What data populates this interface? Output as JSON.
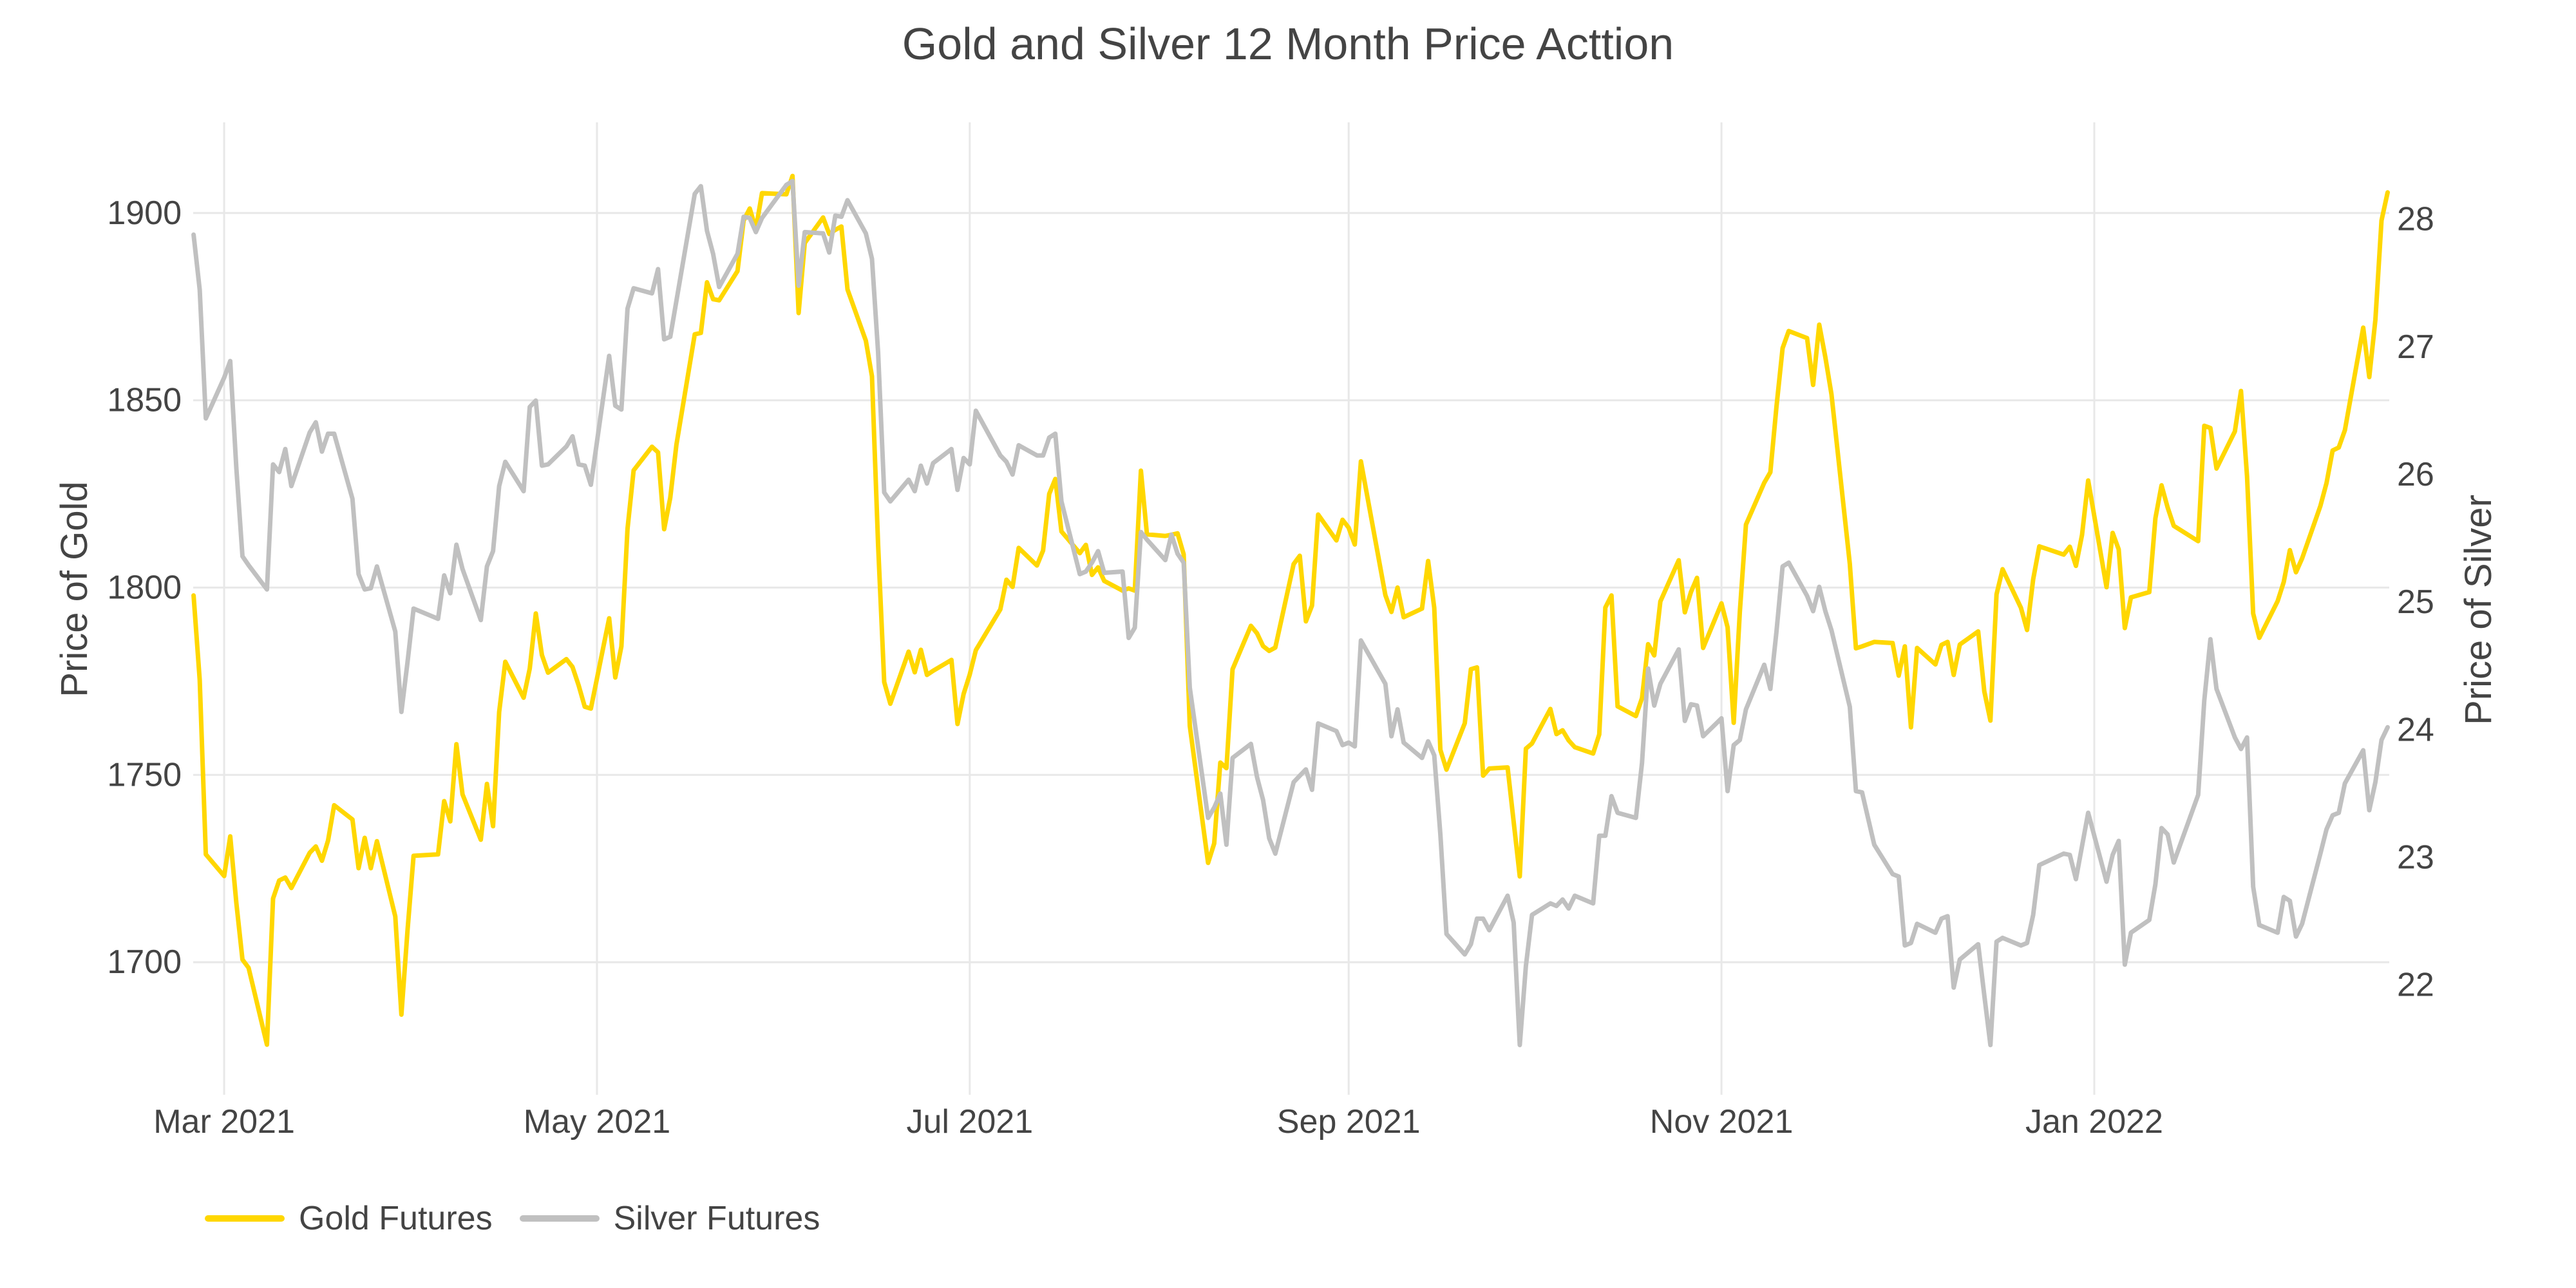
{
  "chart_data": {
    "type": "line",
    "title": "Gold and Silver 12 Month Price Acttion",
    "grid": true,
    "legend_position": "bottom-left",
    "colors": {
      "background": "#FFFFFF",
      "grid": "#E8E8E8",
      "text": "#444444"
    },
    "left_axis": {
      "label": "Price of Gold",
      "ticks": [
        1700,
        1750,
        1800,
        1850,
        1900
      ],
      "range": [
        1664.6,
        1924.2
      ]
    },
    "right_axis": {
      "label": "Price of Silver",
      "ticks": [
        22,
        23,
        24,
        25,
        26,
        27,
        28
      ],
      "range": [
        21.14,
        28.76
      ]
    },
    "x_axis": {
      "ticks": [
        {
          "label": "Mar 2021",
          "date": "2021-03-01"
        },
        {
          "label": "May 2021",
          "date": "2021-05-01"
        },
        {
          "label": "Jul 2021",
          "date": "2021-07-01"
        },
        {
          "label": "Sep 2021",
          "date": "2021-09-01"
        },
        {
          "label": "Nov 2021",
          "date": "2021-11-01"
        },
        {
          "label": "Jan 2022",
          "date": "2022-01-01"
        }
      ]
    },
    "dates": [
      "2021-02-24",
      "2021-02-25",
      "2021-02-26",
      "2021-03-01",
      "2021-03-02",
      "2021-03-03",
      "2021-03-04",
      "2021-03-05",
      "2021-03-08",
      "2021-03-09",
      "2021-03-10",
      "2021-03-11",
      "2021-03-12",
      "2021-03-15",
      "2021-03-16",
      "2021-03-17",
      "2021-03-18",
      "2021-03-19",
      "2021-03-22",
      "2021-03-23",
      "2021-03-24",
      "2021-03-25",
      "2021-03-26",
      "2021-03-29",
      "2021-03-30",
      "2021-03-31",
      "2021-04-01",
      "2021-04-05",
      "2021-04-06",
      "2021-04-07",
      "2021-04-08",
      "2021-04-09",
      "2021-04-12",
      "2021-04-13",
      "2021-04-14",
      "2021-04-15",
      "2021-04-16",
      "2021-04-19",
      "2021-04-20",
      "2021-04-21",
      "2021-04-22",
      "2021-04-23",
      "2021-04-26",
      "2021-04-27",
      "2021-04-28",
      "2021-04-29",
      "2021-04-30",
      "2021-05-03",
      "2021-05-04",
      "2021-05-05",
      "2021-05-06",
      "2021-05-07",
      "2021-05-10",
      "2021-05-11",
      "2021-05-12",
      "2021-05-13",
      "2021-05-14",
      "2021-05-17",
      "2021-05-18",
      "2021-05-19",
      "2021-05-20",
      "2021-05-21",
      "2021-05-24",
      "2021-05-25",
      "2021-05-26",
      "2021-05-27",
      "2021-05-28",
      "2021-06-01",
      "2021-06-02",
      "2021-06-03",
      "2021-06-04",
      "2021-06-07",
      "2021-06-08",
      "2021-06-09",
      "2021-06-10",
      "2021-06-11",
      "2021-06-14",
      "2021-06-15",
      "2021-06-16",
      "2021-06-17",
      "2021-06-18",
      "2021-06-21",
      "2021-06-22",
      "2021-06-23",
      "2021-06-24",
      "2021-06-25",
      "2021-06-28",
      "2021-06-29",
      "2021-06-30",
      "2021-07-01",
      "2021-07-02",
      "2021-07-06",
      "2021-07-07",
      "2021-07-08",
      "2021-07-09",
      "2021-07-12",
      "2021-07-13",
      "2021-07-14",
      "2021-07-15",
      "2021-07-16",
      "2021-07-19",
      "2021-07-20",
      "2021-07-21",
      "2021-07-22",
      "2021-07-23",
      "2021-07-26",
      "2021-07-27",
      "2021-07-28",
      "2021-07-29",
      "2021-07-30",
      "2021-08-02",
      "2021-08-03",
      "2021-08-04",
      "2021-08-05",
      "2021-08-06",
      "2021-08-09",
      "2021-08-10",
      "2021-08-11",
      "2021-08-12",
      "2021-08-13",
      "2021-08-16",
      "2021-08-17",
      "2021-08-18",
      "2021-08-19",
      "2021-08-20",
      "2021-08-23",
      "2021-08-24",
      "2021-08-25",
      "2021-08-26",
      "2021-08-27",
      "2021-08-30",
      "2021-08-31",
      "2021-09-01",
      "2021-09-02",
      "2021-09-03",
      "2021-09-07",
      "2021-09-08",
      "2021-09-09",
      "2021-09-10",
      "2021-09-13",
      "2021-09-14",
      "2021-09-15",
      "2021-09-16",
      "2021-09-17",
      "2021-09-20",
      "2021-09-21",
      "2021-09-22",
      "2021-09-23",
      "2021-09-24",
      "2021-09-27",
      "2021-09-28",
      "2021-09-29",
      "2021-09-30",
      "2021-10-01",
      "2021-10-04",
      "2021-10-05",
      "2021-10-06",
      "2021-10-07",
      "2021-10-08",
      "2021-10-11",
      "2021-10-12",
      "2021-10-13",
      "2021-10-14",
      "2021-10-15",
      "2021-10-18",
      "2021-10-19",
      "2021-10-20",
      "2021-10-21",
      "2021-10-22",
      "2021-10-25",
      "2021-10-26",
      "2021-10-27",
      "2021-10-28",
      "2021-10-29",
      "2021-11-01",
      "2021-11-02",
      "2021-11-03",
      "2021-11-04",
      "2021-11-05",
      "2021-11-08",
      "2021-11-09",
      "2021-11-10",
      "2021-11-11",
      "2021-11-12",
      "2021-11-15",
      "2021-11-16",
      "2021-11-17",
      "2021-11-18",
      "2021-11-19",
      "2021-11-22",
      "2021-11-23",
      "2021-11-24",
      "2021-11-26",
      "2021-11-29",
      "2021-11-30",
      "2021-12-01",
      "2021-12-02",
      "2021-12-03",
      "2021-12-06",
      "2021-12-07",
      "2021-12-08",
      "2021-12-09",
      "2021-12-10",
      "2021-12-13",
      "2021-12-14",
      "2021-12-15",
      "2021-12-16",
      "2021-12-17",
      "2021-12-20",
      "2021-12-21",
      "2021-12-22",
      "2021-12-23",
      "2021-12-27",
      "2021-12-28",
      "2021-12-29",
      "2021-12-30",
      "2021-12-31",
      "2022-01-03",
      "2022-01-04",
      "2022-01-05",
      "2022-01-06",
      "2022-01-07",
      "2022-01-10",
      "2022-01-11",
      "2022-01-12",
      "2022-01-13",
      "2022-01-14",
      "2022-01-18",
      "2022-01-19",
      "2022-01-20",
      "2022-01-21",
      "2022-01-24",
      "2022-01-25",
      "2022-01-26",
      "2022-01-27",
      "2022-01-28",
      "2022-01-31",
      "2022-02-01",
      "2022-02-02",
      "2022-02-03",
      "2022-02-04",
      "2022-02-07",
      "2022-02-08",
      "2022-02-09",
      "2022-02-10",
      "2022-02-11",
      "2022-02-14",
      "2022-02-15",
      "2022-02-16",
      "2022-02-17",
      "2022-02-18"
    ],
    "series": [
      {
        "name": "Gold Futures",
        "axis": "left",
        "color": "#FFD700",
        "values": [
          1797.9,
          1775.4,
          1728.8,
          1723.0,
          1733.6,
          1715.8,
          1700.7,
          1698.5,
          1678.0,
          1717.0,
          1721.8,
          1722.6,
          1719.8,
          1729.2,
          1730.9,
          1727.1,
          1732.5,
          1741.9,
          1738.1,
          1725.1,
          1733.2,
          1725.1,
          1732.3,
          1712.2,
          1686.0,
          1708.5,
          1728.4,
          1728.8,
          1743.0,
          1737.6,
          1758.2,
          1744.8,
          1732.7,
          1747.6,
          1736.3,
          1766.8,
          1780.2,
          1770.6,
          1778.4,
          1793.1,
          1782.0,
          1777.3,
          1780.9,
          1778.8,
          1773.9,
          1768.2,
          1767.7,
          1791.8,
          1776.0,
          1784.3,
          1815.7,
          1831.3,
          1837.6,
          1836.1,
          1815.6,
          1824.0,
          1838.1,
          1867.6,
          1868.0,
          1881.5,
          1877.0,
          1876.7,
          1884.5,
          1898.0,
          1901.2,
          1895.7,
          1905.3,
          1905.0,
          1909.9,
          1873.3,
          1892.0,
          1898.8,
          1894.4,
          1895.5,
          1896.4,
          1879.6,
          1865.9,
          1856.4,
          1811.5,
          1774.8,
          1769.0,
          1782.9,
          1777.4,
          1783.4,
          1776.7,
          1777.8,
          1780.7,
          1763.6,
          1771.6,
          1776.8,
          1783.3,
          1794.2,
          1802.1,
          1800.2,
          1810.6,
          1805.9,
          1809.9,
          1825.0,
          1829.0,
          1815.0,
          1809.2,
          1811.4,
          1803.4,
          1805.4,
          1801.8,
          1799.2,
          1799.8,
          1799.2,
          1831.2,
          1814.2,
          1813.8,
          1814.1,
          1814.5,
          1808.9,
          1763.1,
          1726.5,
          1731.7,
          1753.3,
          1751.8,
          1778.2,
          1789.8,
          1787.8,
          1784.4,
          1783.1,
          1784.0,
          1806.3,
          1808.5,
          1791.0,
          1795.2,
          1819.5,
          1812.6,
          1818.1,
          1816.0,
          1811.5,
          1833.7,
          1798.0,
          1793.5,
          1800.0,
          1792.1,
          1794.4,
          1807.1,
          1794.6,
          1756.7,
          1751.4,
          1763.8,
          1778.2,
          1778.7,
          1749.8,
          1751.7,
          1752.0,
          1737.5,
          1722.9,
          1757.0,
          1758.4,
          1767.6,
          1760.9,
          1761.9,
          1759.2,
          1757.4,
          1755.7,
          1760.8,
          1794.7,
          1797.9,
          1768.3,
          1765.7,
          1770.5,
          1784.9,
          1781.9,
          1796.3,
          1807.3,
          1793.4,
          1798.8,
          1802.6,
          1783.9,
          1795.8,
          1789.4,
          1763.9,
          1793.5,
          1816.8,
          1828.0,
          1830.8,
          1848.3,
          1863.9,
          1868.5,
          1866.6,
          1854.1,
          1870.2,
          1861.5,
          1851.6,
          1806.3,
          1783.8,
          1784.3,
          1785.5,
          1785.2,
          1776.5,
          1784.3,
          1762.7,
          1783.9,
          1779.5,
          1784.7,
          1785.5,
          1776.7,
          1784.8,
          1788.3,
          1772.3,
          1764.5,
          1798.2,
          1804.9,
          1794.6,
          1788.7,
          1802.2,
          1811.0,
          1808.8,
          1810.9,
          1805.8,
          1814.1,
          1828.6,
          1800.1,
          1814.6,
          1810.2,
          1789.2,
          1797.4,
          1798.8,
          1818.5,
          1827.3,
          1821.4,
          1816.5,
          1812.4,
          1843.2,
          1842.6,
          1831.8,
          1841.7,
          1852.5,
          1829.7,
          1793.1,
          1786.6,
          1796.4,
          1801.5,
          1810.0,
          1804.1,
          1807.8,
          1821.8,
          1827.9,
          1836.6,
          1837.4,
          1842.0,
          1869.4,
          1856.2,
          1871.5,
          1898.0,
          1905.5
        ]
      },
      {
        "name": "Silver Futures",
        "axis": "right",
        "color": "#C0C0C0",
        "values": [
          27.88,
          27.45,
          26.44,
          26.76,
          26.89,
          26.05,
          25.36,
          25.29,
          25.1,
          26.08,
          26.02,
          26.2,
          25.91,
          26.33,
          26.41,
          26.18,
          26.32,
          26.32,
          25.81,
          25.22,
          25.1,
          25.11,
          25.28,
          24.77,
          24.14,
          24.53,
          24.95,
          24.87,
          25.21,
          25.07,
          25.45,
          25.26,
          24.86,
          25.28,
          25.4,
          25.91,
          26.1,
          25.87,
          26.53,
          26.58,
          26.07,
          26.08,
          26.22,
          26.3,
          26.08,
          26.07,
          25.92,
          26.93,
          26.54,
          26.51,
          27.3,
          27.46,
          27.42,
          27.61,
          27.06,
          27.08,
          27.36,
          28.2,
          28.26,
          27.91,
          27.73,
          27.47,
          27.73,
          28.02,
          28.01,
          27.9,
          28.01,
          28.27,
          28.3,
          27.48,
          27.9,
          27.89,
          27.74,
          28.03,
          28.02,
          28.15,
          27.89,
          27.69,
          26.96,
          25.86,
          25.79,
          25.96,
          25.87,
          26.07,
          25.93,
          26.09,
          26.2,
          25.88,
          26.13,
          26.08,
          26.5,
          26.15,
          26.1,
          26.0,
          26.23,
          26.15,
          26.15,
          26.29,
          26.32,
          25.79,
          25.22,
          25.24,
          25.31,
          25.4,
          25.23,
          25.24,
          24.72,
          24.8,
          25.55,
          25.49,
          25.33,
          25.53,
          25.38,
          25.31,
          24.33,
          23.31,
          23.39,
          23.5,
          23.1,
          23.78,
          23.89,
          23.63,
          23.45,
          23.15,
          23.03,
          23.59,
          23.64,
          23.69,
          23.53,
          24.05,
          23.99,
          23.88,
          23.9,
          23.87,
          24.7,
          24.36,
          23.95,
          24.16,
          23.9,
          23.78,
          23.91,
          23.8,
          23.18,
          22.4,
          22.24,
          22.32,
          22.52,
          22.52,
          22.43,
          22.7,
          22.49,
          21.53,
          22.15,
          22.55,
          22.64,
          22.62,
          22.67,
          22.6,
          22.7,
          22.64,
          23.17,
          23.17,
          23.48,
          23.35,
          23.31,
          23.74,
          24.48,
          24.19,
          24.36,
          24.63,
          24.07,
          24.2,
          24.19,
          23.95,
          24.09,
          23.52,
          23.88,
          23.92,
          24.16,
          24.51,
          24.32,
          24.77,
          25.28,
          25.31,
          25.05,
          24.93,
          25.12,
          24.93,
          24.78,
          24.18,
          23.52,
          23.51,
          23.1,
          22.87,
          22.85,
          22.31,
          22.33,
          22.48,
          22.41,
          22.52,
          22.54,
          21.98,
          22.2,
          22.32,
          21.92,
          21.53,
          22.34,
          22.37,
          22.31,
          22.33,
          22.55,
          22.94,
          23.03,
          23.02,
          22.83,
          23.09,
          23.35,
          22.81,
          23.02,
          23.13,
          22.16,
          22.41,
          22.51,
          22.79,
          23.23,
          23.18,
          22.96,
          23.49,
          24.23,
          24.71,
          24.32,
          23.94,
          23.85,
          23.94,
          22.77,
          22.47,
          22.41,
          22.69,
          22.66,
          22.38,
          22.48,
          23.03,
          23.22,
          23.33,
          23.35,
          23.58,
          23.84,
          23.37,
          23.59,
          23.92,
          24.02
        ]
      }
    ]
  }
}
